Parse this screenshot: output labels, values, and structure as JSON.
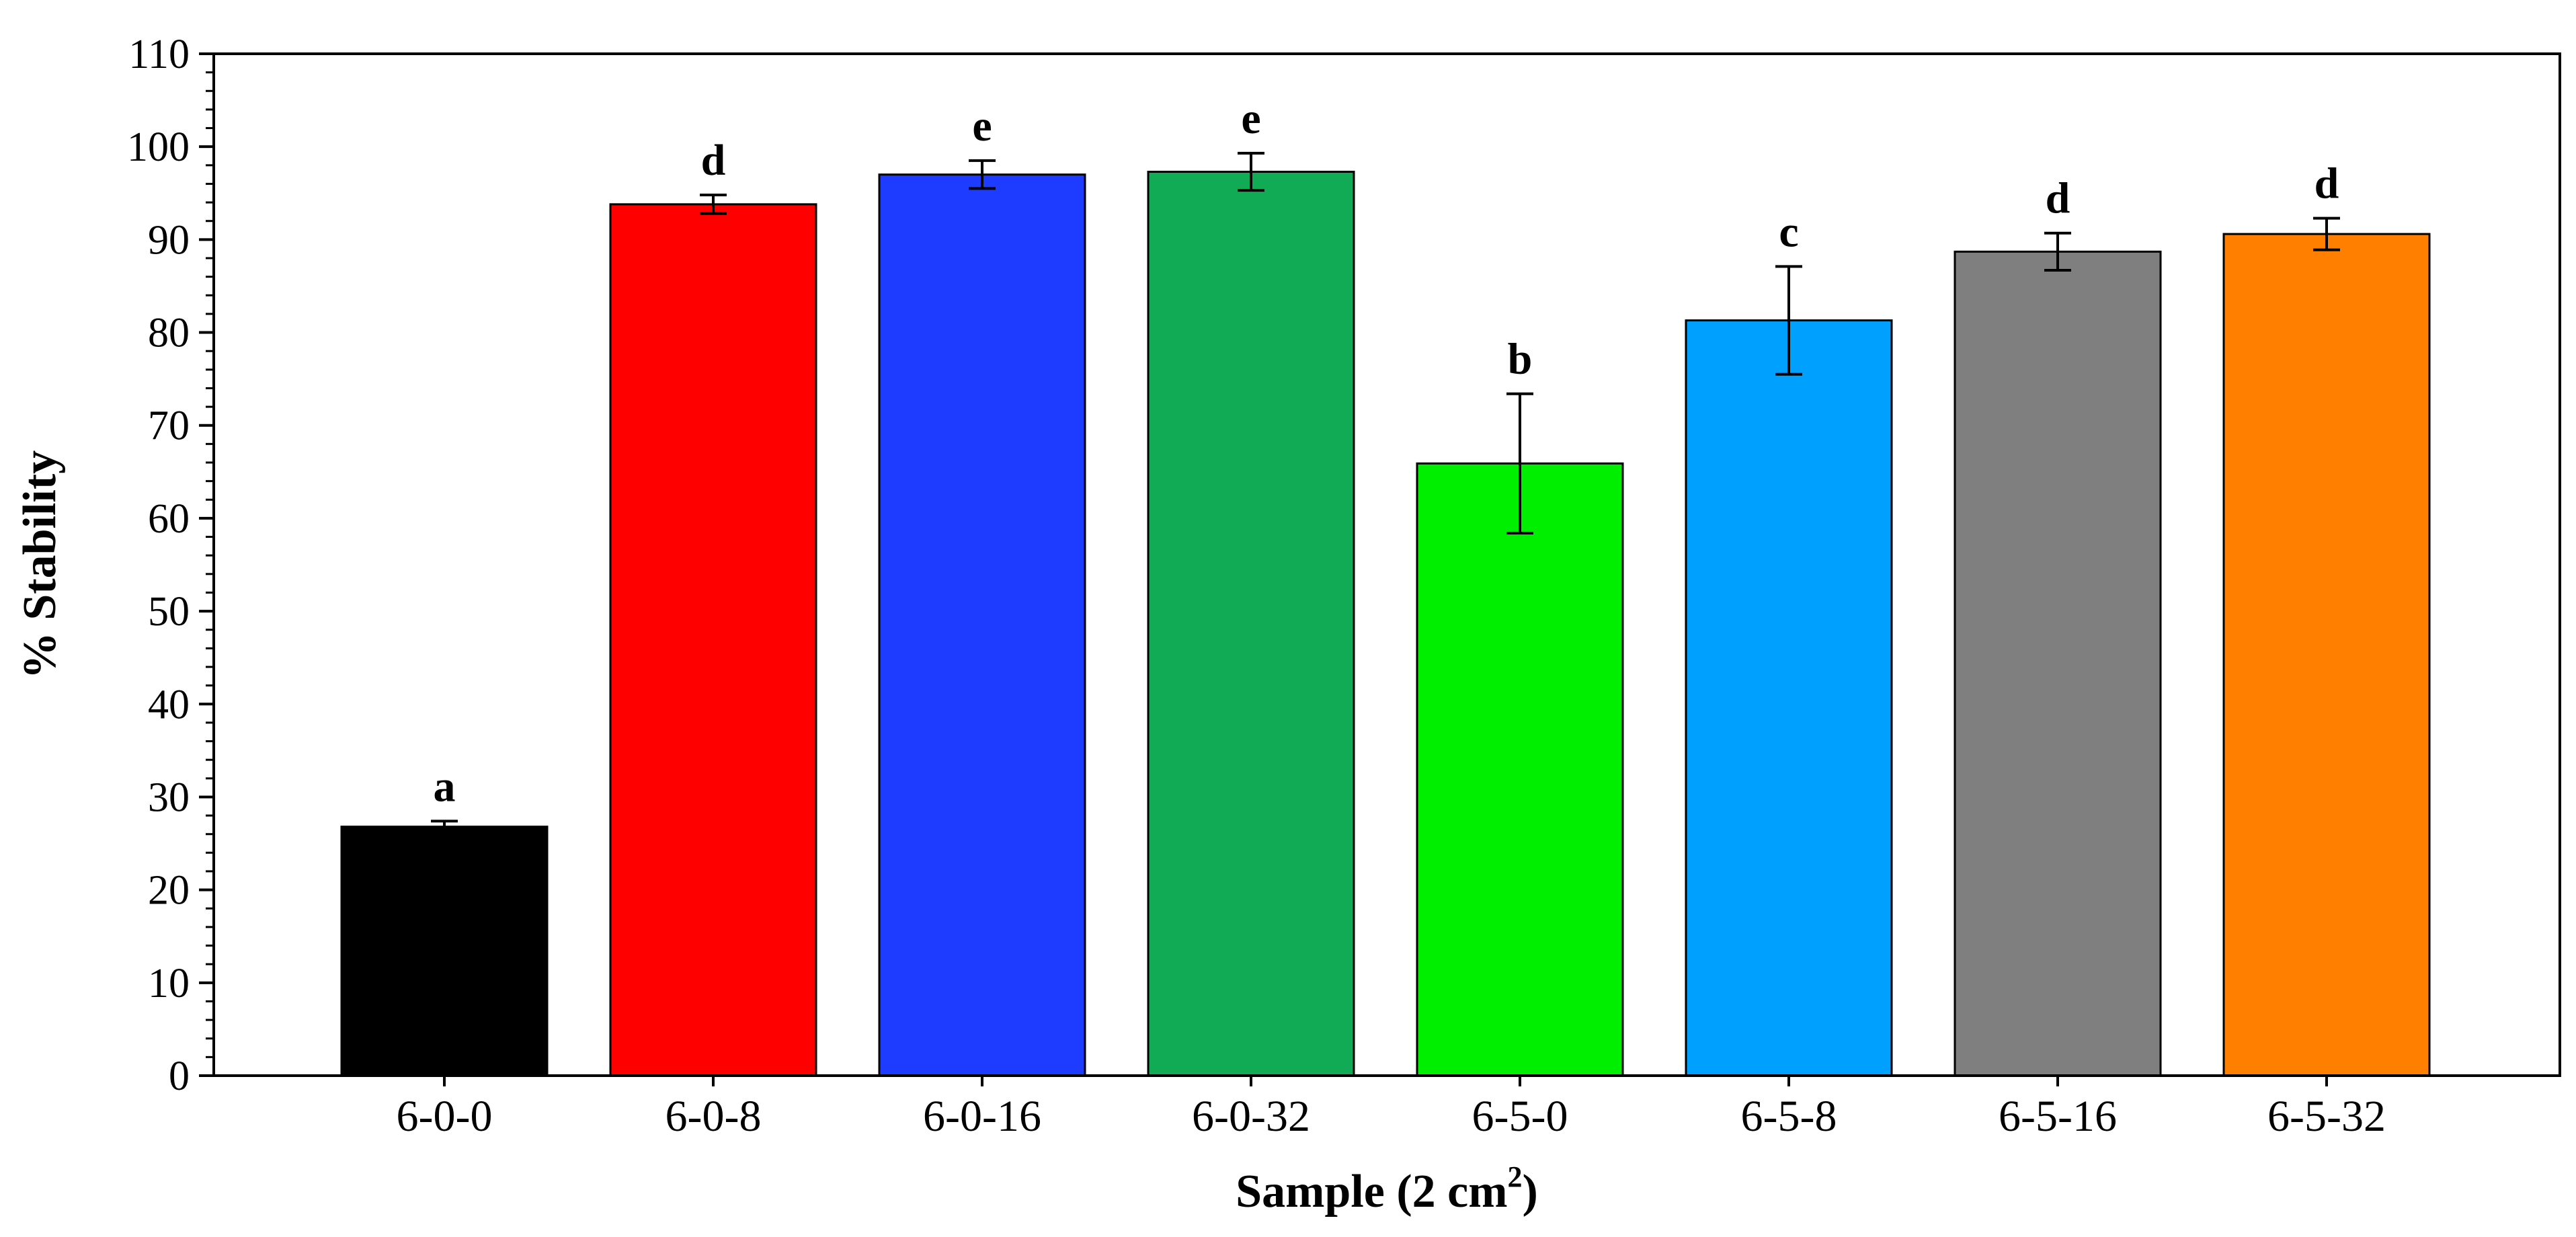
{
  "chart_data": {
    "type": "bar",
    "title": "",
    "xlabel": "Sample (2 cm",
    "xlabel_superscript": "2",
    "xlabel_suffix": ")",
    "ylabel": "% Stability",
    "ylim": [
      0,
      110
    ],
    "yticks": [
      0,
      10,
      20,
      30,
      40,
      50,
      60,
      70,
      80,
      90,
      100,
      110
    ],
    "minor_tick_step": 2,
    "grid": false,
    "legend": "none",
    "categories": [
      "6-0-0",
      "6-0-8",
      "6-0-16",
      "6-0-32",
      "6-5-0",
      "6-5-8",
      "6-5-16",
      "6-5-32"
    ],
    "values": [
      26.8,
      93.8,
      97.0,
      97.3,
      65.9,
      81.3,
      88.7,
      90.6
    ],
    "errors": [
      0.6,
      1.0,
      1.5,
      2.0,
      7.5,
      5.8,
      2.0,
      1.7
    ],
    "significance_letters": [
      "a",
      "d",
      "e",
      "e",
      "b",
      "c",
      "d",
      "d"
    ],
    "colors": [
      "#000000",
      "#ff0000",
      "#1e3cff",
      "#12ab55",
      "#00ee00",
      "#00a0ff",
      "#7f7f7f",
      "#ff7f00"
    ]
  }
}
